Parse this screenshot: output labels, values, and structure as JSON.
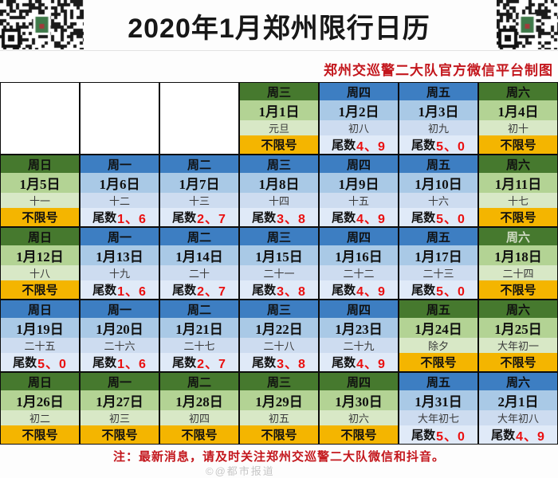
{
  "title": "2020年1月郑州限行日历",
  "subtitle": "郑州交巡警二大队官方微信平台制图",
  "footer_note": "注：最新消息，请及时关注郑州交巡警二大队微信和抖音。",
  "watermark": "©@都市报道",
  "labels": {
    "free": "不限号",
    "tail_prefix": "尾数"
  },
  "colors": {
    "free_header": "#46792e",
    "free_date": "#b3d394",
    "free_lunar": "#d8e8c6",
    "free_restriction_bg": "#f4b500",
    "restricted_header": "#3d7ec2",
    "restricted_date": "#a9c9e6",
    "restricted_lunar": "#cddcf0",
    "restricted_restriction_bg": "#e0eaf8",
    "number_red": "#ea1010",
    "accent_red": "#c3161c",
    "border_black": "#0c0c0c"
  },
  "weeks": [
    {
      "days": [
        null,
        null,
        null,
        {
          "weekday": "周三",
          "date": "1月1日",
          "lunar": "元旦",
          "kind": "free",
          "restriction": "不限号"
        },
        {
          "weekday": "周四",
          "date": "1月2日",
          "lunar": "初八",
          "kind": "restricted",
          "restriction": "尾数",
          "numbers": "4、9"
        },
        {
          "weekday": "周五",
          "date": "1月3日",
          "lunar": "初九",
          "kind": "restricted",
          "restriction": "尾数",
          "numbers": "5、0"
        },
        {
          "weekday": "周六",
          "date": "1月4日",
          "lunar": "初十",
          "kind": "free",
          "restriction": "不限号"
        }
      ]
    },
    {
      "days": [
        {
          "weekday": "周日",
          "date": "1月5日",
          "lunar": "十一",
          "kind": "free",
          "restriction": "不限号"
        },
        {
          "weekday": "周一",
          "date": "1月6日",
          "lunar": "十二",
          "kind": "restricted",
          "restriction": "尾数",
          "numbers": "1、6"
        },
        {
          "weekday": "周二",
          "date": "1月7日",
          "lunar": "十三",
          "kind": "restricted",
          "restriction": "尾数",
          "numbers": "2、7"
        },
        {
          "weekday": "周三",
          "date": "1月8日",
          "lunar": "十四",
          "kind": "restricted",
          "restriction": "尾数",
          "numbers": "3、8"
        },
        {
          "weekday": "周四",
          "date": "1月9日",
          "lunar": "十五",
          "kind": "restricted",
          "restriction": "尾数",
          "numbers": "4、9"
        },
        {
          "weekday": "周五",
          "date": "1月10日",
          "lunar": "十六",
          "kind": "restricted",
          "restriction": "尾数",
          "numbers": "5、0"
        },
        {
          "weekday": "周六",
          "date": "1月11日",
          "lunar": "十七",
          "kind": "free",
          "restriction": "不限号"
        }
      ]
    },
    {
      "days": [
        {
          "weekday": "周日",
          "date": "1月12日",
          "lunar": "十八",
          "kind": "free",
          "restriction": "不限号"
        },
        {
          "weekday": "周一",
          "date": "1月13日",
          "lunar": "十九",
          "kind": "restricted",
          "restriction": "尾数",
          "numbers": "1、6"
        },
        {
          "weekday": "周二",
          "date": "1月14日",
          "lunar": "二十",
          "kind": "restricted",
          "restriction": "尾数",
          "numbers": "2、7"
        },
        {
          "weekday": "周三",
          "date": "1月15日",
          "lunar": "二十一",
          "kind": "restricted",
          "restriction": "尾数",
          "numbers": "3、8"
        },
        {
          "weekday": "周四",
          "date": "1月16日",
          "lunar": "二十二",
          "kind": "restricted",
          "restriction": "尾数",
          "numbers": "4、9"
        },
        {
          "weekday": "周五",
          "date": "1月17日",
          "lunar": "二十三",
          "kind": "restricted",
          "restriction": "尾数",
          "numbers": "5、0"
        },
        {
          "weekday": "周六",
          "date": "1月18日",
          "lunar": "二十四",
          "kind": "free",
          "restriction": "不限号",
          "muted": true
        }
      ]
    },
    {
      "days": [
        {
          "weekday": "周日",
          "date": "1月19日",
          "lunar": "二十五",
          "kind": "restricted",
          "restriction": "尾数",
          "numbers": "5、0"
        },
        {
          "weekday": "周一",
          "date": "1月20日",
          "lunar": "二十六",
          "kind": "restricted",
          "restriction": "尾数",
          "numbers": "1、6"
        },
        {
          "weekday": "周二",
          "date": "1月21日",
          "lunar": "二十七",
          "kind": "restricted",
          "restriction": "尾数",
          "numbers": "2、7"
        },
        {
          "weekday": "周三",
          "date": "1月22日",
          "lunar": "二十八",
          "kind": "restricted",
          "restriction": "尾数",
          "numbers": "3、8"
        },
        {
          "weekday": "周四",
          "date": "1月23日",
          "lunar": "二十九",
          "kind": "restricted",
          "restriction": "尾数",
          "numbers": "4、9"
        },
        {
          "weekday": "周五",
          "date": "1月24日",
          "lunar": "除夕",
          "kind": "free",
          "restriction": "不限号"
        },
        {
          "weekday": "周六",
          "date": "1月25日",
          "lunar": "大年初一",
          "kind": "free",
          "restriction": "不限号"
        }
      ]
    },
    {
      "days": [
        {
          "weekday": "周日",
          "date": "1月26日",
          "lunar": "初二",
          "kind": "free",
          "restriction": "不限号"
        },
        {
          "weekday": "周一",
          "date": "1月27日",
          "lunar": "初三",
          "kind": "free",
          "restriction": "不限号"
        },
        {
          "weekday": "周二",
          "date": "1月28日",
          "lunar": "初四",
          "kind": "free",
          "restriction": "不限号"
        },
        {
          "weekday": "周三",
          "date": "1月29日",
          "lunar": "初五",
          "kind": "free",
          "restriction": "不限号"
        },
        {
          "weekday": "周四",
          "date": "1月30日",
          "lunar": "初六",
          "kind": "free",
          "restriction": "不限号"
        },
        {
          "weekday": "周五",
          "date": "1月31日",
          "lunar": "大年初七",
          "kind": "restricted",
          "restriction": "尾数",
          "numbers": "5、0"
        },
        {
          "weekday": "周六",
          "date": "2月1日",
          "lunar": "大年初八",
          "kind": "restricted",
          "restriction": "尾数",
          "numbers": "4、9"
        }
      ]
    }
  ]
}
